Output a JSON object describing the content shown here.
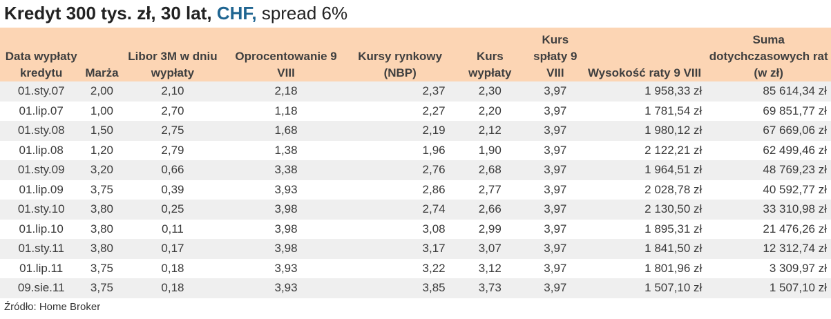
{
  "title": {
    "part1": "Kredyt 300 tys. zł, 30 lat, ",
    "currency": "CHF,",
    "part2": " spread 6%"
  },
  "headers": [
    "Data wypłaty kredytu",
    "Marża",
    "Libor 3M w dniu wypłaty",
    "Oprocentowanie 9 VIII",
    "Kursy rynkowy (NBP)",
    "Kurs wypłaty",
    "Kurs spłaty 9 VIII",
    "Wysokość raty 9 VIII",
    "Suma dotychczasowych rat (w zł)"
  ],
  "rows": [
    [
      "01.sty.07",
      "2,00",
      "2,10",
      "2,18",
      "2,37",
      "2,30",
      "3,97",
      "1 958,33 zł",
      "85 614,34 zł"
    ],
    [
      "01.lip.07",
      "1,00",
      "2,70",
      "1,18",
      "2,27",
      "2,20",
      "3,97",
      "1 781,54 zł",
      "69 851,77 zł"
    ],
    [
      "01.sty.08",
      "1,50",
      "2,75",
      "1,68",
      "2,19",
      "2,12",
      "3,97",
      "1 980,12 zł",
      "67 669,06 zł"
    ],
    [
      "01.lip.08",
      "1,20",
      "2,79",
      "1,38",
      "1,96",
      "1,90",
      "3,97",
      "2 122,21 zł",
      "62 499,46 zł"
    ],
    [
      "01.sty.09",
      "3,20",
      "0,66",
      "3,38",
      "2,76",
      "2,68",
      "3,97",
      "1 964,51 zł",
      "48 769,23 zł"
    ],
    [
      "01.lip.09",
      "3,75",
      "0,39",
      "3,93",
      "2,86",
      "2,77",
      "3,97",
      "2 028,78 zł",
      "40 592,77 zł"
    ],
    [
      "01.sty.10",
      "3,80",
      "0,25",
      "3,98",
      "2,74",
      "2,66",
      "3,97",
      "2 130,50 zł",
      "33 310,98 zł"
    ],
    [
      "01.lip.10",
      "3,80",
      "0,11",
      "3,98",
      "3,08",
      "2,99",
      "3,97",
      "1 895,31 zł",
      "21 476,26 zł"
    ],
    [
      "01.sty.11",
      "3,80",
      "0,17",
      "3,98",
      "3,17",
      "3,07",
      "3,97",
      "1 841,50 zł",
      "12 312,74 zł"
    ],
    [
      "01.lip.11",
      "3,75",
      "0,18",
      "3,93",
      "3,22",
      "3,12",
      "3,97",
      "1 801,96 zł",
      "3 309,97 zł"
    ],
    [
      "09.sie.11",
      "3,75",
      "0,18",
      "3,93",
      "3,85",
      "3,73",
      "3,97",
      "1 507,10 zł",
      "1 507,10 zł"
    ]
  ],
  "source": "Źródło: Home Broker",
  "colors": {
    "header_bg": "#fcd5b4",
    "accent": "#1f6591",
    "row_alt": "#efefef"
  }
}
